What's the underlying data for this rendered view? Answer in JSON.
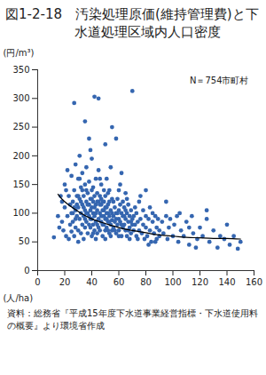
{
  "chart_data": {
    "type": "scatter",
    "title": "図1-2-18　汚染処理原価(維持管理費)と下水道処理区域内人口密度",
    "xlabel": "(人/ha)",
    "ylabel": "(円/m³)",
    "annotation": "N＝754市町村",
    "caption": "資料：総務省『平成15年度下水道事業経営指標・下水道使用料の概要』より環境省作成",
    "xlim": [
      0,
      160
    ],
    "xticks": [
      0,
      20,
      40,
      60,
      80,
      100,
      120,
      140,
      160
    ],
    "ylim": [
      0,
      350
    ],
    "yticks": [
      0,
      50,
      100,
      150,
      200,
      250,
      300,
      350
    ],
    "grid": false,
    "series": [
      {
        "type": "scatter",
        "color": "#3566b0",
        "marker": "circle",
        "x": [
          12,
          15,
          17,
          18,
          19,
          20,
          20,
          21,
          22,
          22,
          23,
          24,
          24,
          25,
          25,
          25,
          23,
          18,
          16,
          21,
          26,
          26,
          27,
          27,
          27,
          28,
          28,
          28,
          29,
          29,
          30,
          30,
          30,
          30,
          31,
          31,
          31,
          32,
          32,
          32,
          33,
          33,
          33,
          34,
          34,
          34,
          35,
          35,
          35,
          35,
          26,
          29,
          31,
          33,
          34,
          28,
          30,
          32,
          35,
          27,
          36,
          36,
          36,
          37,
          37,
          37,
          38,
          38,
          38,
          38,
          39,
          39,
          39,
          40,
          40,
          40,
          40,
          40,
          41,
          41,
          41,
          42,
          42,
          42,
          42,
          43,
          43,
          43,
          44,
          44,
          44,
          45,
          45,
          45,
          45,
          45,
          36,
          37,
          39,
          41,
          43,
          44,
          42,
          40,
          38,
          36,
          39,
          41,
          43,
          44,
          46,
          46,
          46,
          47,
          47,
          47,
          48,
          48,
          48,
          49,
          49,
          49,
          50,
          50,
          50,
          50,
          50,
          51,
          51,
          51,
          52,
          52,
          52,
          53,
          53,
          53,
          54,
          54,
          54,
          55,
          55,
          55,
          55,
          46,
          47,
          48,
          49,
          51,
          52,
          53,
          54,
          55,
          46,
          48,
          50,
          52,
          53,
          47,
          49,
          51,
          56,
          56,
          56,
          57,
          57,
          58,
          58,
          58,
          59,
          59,
          60,
          60,
          60,
          60,
          61,
          61,
          62,
          62,
          62,
          63,
          63,
          64,
          64,
          65,
          65,
          65,
          66,
          66,
          67,
          67,
          68,
          68,
          69,
          69,
          70,
          70,
          70,
          57,
          59,
          61,
          63,
          66,
          68,
          64,
          67,
          69,
          58,
          62,
          65,
          60,
          71,
          71,
          72,
          72,
          73,
          73,
          74,
          75,
          75,
          76,
          77,
          78,
          78,
          79,
          80,
          80,
          81,
          82,
          83,
          83,
          84,
          85,
          86,
          87,
          88,
          88,
          89,
          90,
          90,
          76,
          80,
          74,
          85,
          87,
          82,
          92,
          93,
          95,
          96,
          97,
          98,
          100,
          101,
          103,
          104,
          106,
          108,
          110,
          112,
          114,
          115,
          118,
          120,
          122,
          125,
          127,
          130,
          133,
          135,
          138,
          140,
          142,
          145,
          148,
          150,
          95,
          105,
          125,
          112,
          117
        ],
        "values": [
          58,
          95,
          130,
          85,
          70,
          150,
          110,
          60,
          175,
          95,
          130,
          80,
          115,
          165,
          68,
          100,
          55,
          120,
          75,
          140,
          120,
          85,
          292,
          140,
          60,
          105,
          185,
          75,
          95,
          130,
          160,
          110,
          70,
          50,
          125,
          90,
          200,
          100,
          145,
          65,
          115,
          80,
          170,
          95,
          130,
          55,
          260,
          105,
          75,
          150,
          100,
          115,
          160,
          140,
          110,
          90,
          130,
          120,
          90,
          110,
          120,
          85,
          180,
          100,
          135,
          65,
          115,
          95,
          155,
          230,
          75,
          125,
          105,
          140,
          90,
          60,
          110,
          195,
          120,
          80,
          100,
          303,
          130,
          70,
          95,
          115,
          160,
          85,
          105,
          135,
          65,
          300,
          120,
          90,
          75,
          175,
          100,
          115,
          90,
          145,
          100,
          80,
          110,
          125,
          80,
          140,
          210,
          65,
          55,
          120,
          100,
          130,
          70,
          115,
          85,
          150,
          95,
          120,
          60,
          105,
          140,
          80,
          220,
          110,
          90,
          70,
          130,
          100,
          160,
          75,
          115,
          85,
          135,
          95,
          65,
          120,
          105,
          80,
          180,
          250,
          100,
          70,
          125,
          115,
          95,
          80,
          120,
          90,
          100,
          140,
          60,
          88,
          160,
          105,
          55,
          70,
          85,
          125,
          95,
          110,
          95,
          120,
          75,
          110,
          85,
          230,
          100,
          65,
          125,
          80,
          105,
          90,
          140,
          70,
          115,
          85,
          100,
          60,
          170,
          95,
          120,
          80,
          110,
          90,
          70,
          135,
          100,
          60,
          85,
          115,
          95,
          75,
          105,
          65,
          313,
          90,
          80,
          70,
          100,
          150,
          75,
          125,
          55,
          95,
          70,
          85,
          90,
          80,
          105,
          60,
          95,
          70,
          110,
          80,
          60,
          100,
          85,
          120,
          70,
          90,
          65,
          105,
          80,
          55,
          95,
          75,
          60,
          90,
          110,
          70,
          50,
          85,
          65,
          95,
          75,
          55,
          90,
          70,
          60,
          130,
          140,
          55,
          100,
          50,
          45,
          85,
          65,
          95,
          55,
          75,
          90,
          60,
          80,
          95,
          50,
          70,
          60,
          85,
          45,
          95,
          65,
          55,
          75,
          60,
          90,
          50,
          70,
          40,
          60,
          55,
          80,
          45,
          60,
          38,
          50,
          120,
          100,
          105,
          75,
          40
        ]
      },
      {
        "type": "line",
        "color": "#000000",
        "line_style": "solid",
        "x": [
          15,
          20,
          30,
          40,
          50,
          60,
          70,
          80,
          90,
          100,
          110,
          120,
          130,
          140,
          150
        ],
        "values": [
          133,
          120,
          103,
          90,
          82,
          75,
          70,
          66,
          62,
          60,
          58,
          57,
          56,
          56,
          55
        ]
      }
    ]
  }
}
